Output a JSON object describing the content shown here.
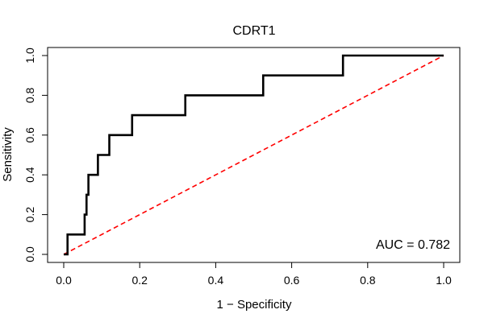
{
  "chart_data": {
    "type": "line",
    "title": "CDRT1",
    "xlabel": "1 − Specificity",
    "ylabel": "Sensitivity",
    "xlim": [
      0,
      1
    ],
    "ylim": [
      0,
      1
    ],
    "x_ticks": [
      "0.0",
      "0.2",
      "0.4",
      "0.6",
      "0.8",
      "1.0"
    ],
    "y_ticks": [
      "0.0",
      "0.2",
      "0.4",
      "0.6",
      "0.8",
      "1.0"
    ],
    "grid": false,
    "annotation": "AUC = 0.782",
    "series": [
      {
        "color": "#000000",
        "style": "solid",
        "points": [
          [
            0.0,
            0.0
          ],
          [
            0.01,
            0.0
          ],
          [
            0.01,
            0.1
          ],
          [
            0.055,
            0.1
          ],
          [
            0.055,
            0.2
          ],
          [
            0.06,
            0.2
          ],
          [
            0.06,
            0.3
          ],
          [
            0.065,
            0.3
          ],
          [
            0.065,
            0.4
          ],
          [
            0.09,
            0.4
          ],
          [
            0.09,
            0.5
          ],
          [
            0.12,
            0.5
          ],
          [
            0.12,
            0.6
          ],
          [
            0.18,
            0.6
          ],
          [
            0.18,
            0.7
          ],
          [
            0.32,
            0.7
          ],
          [
            0.32,
            0.8
          ],
          [
            0.525,
            0.8
          ],
          [
            0.525,
            0.9
          ],
          [
            0.735,
            0.9
          ],
          [
            0.735,
            1.0
          ],
          [
            1.0,
            1.0
          ]
        ]
      },
      {
        "color": "#ff0000",
        "style": "dashed",
        "points": [
          [
            0.0,
            0.0
          ],
          [
            1.0,
            1.0
          ]
        ]
      }
    ]
  }
}
